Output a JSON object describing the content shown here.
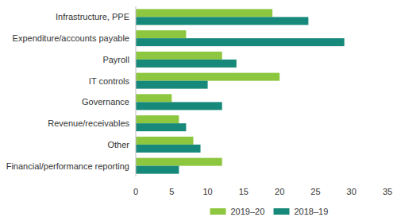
{
  "chart_data": {
    "type": "bar",
    "orientation": "horizontal",
    "categories": [
      "Infrastructure, PPE",
      "Expenditure/accounts payable",
      "Payroll",
      "IT controls",
      "Governance",
      "Revenue/receivables",
      "Other",
      "Financial/performance reporting"
    ],
    "series": [
      {
        "name": "2019–20",
        "color": "#8dc63f",
        "values": [
          19,
          7,
          12,
          20,
          5,
          6,
          8,
          12
        ]
      },
      {
        "name": "2018–19",
        "color": "#17897a",
        "values": [
          24,
          29,
          14,
          10,
          12,
          7,
          9,
          6
        ]
      }
    ],
    "xlim": [
      0,
      35
    ],
    "xticks": [
      0,
      5,
      10,
      15,
      20,
      25,
      30,
      35
    ],
    "grid": false,
    "legend": "bottom"
  }
}
